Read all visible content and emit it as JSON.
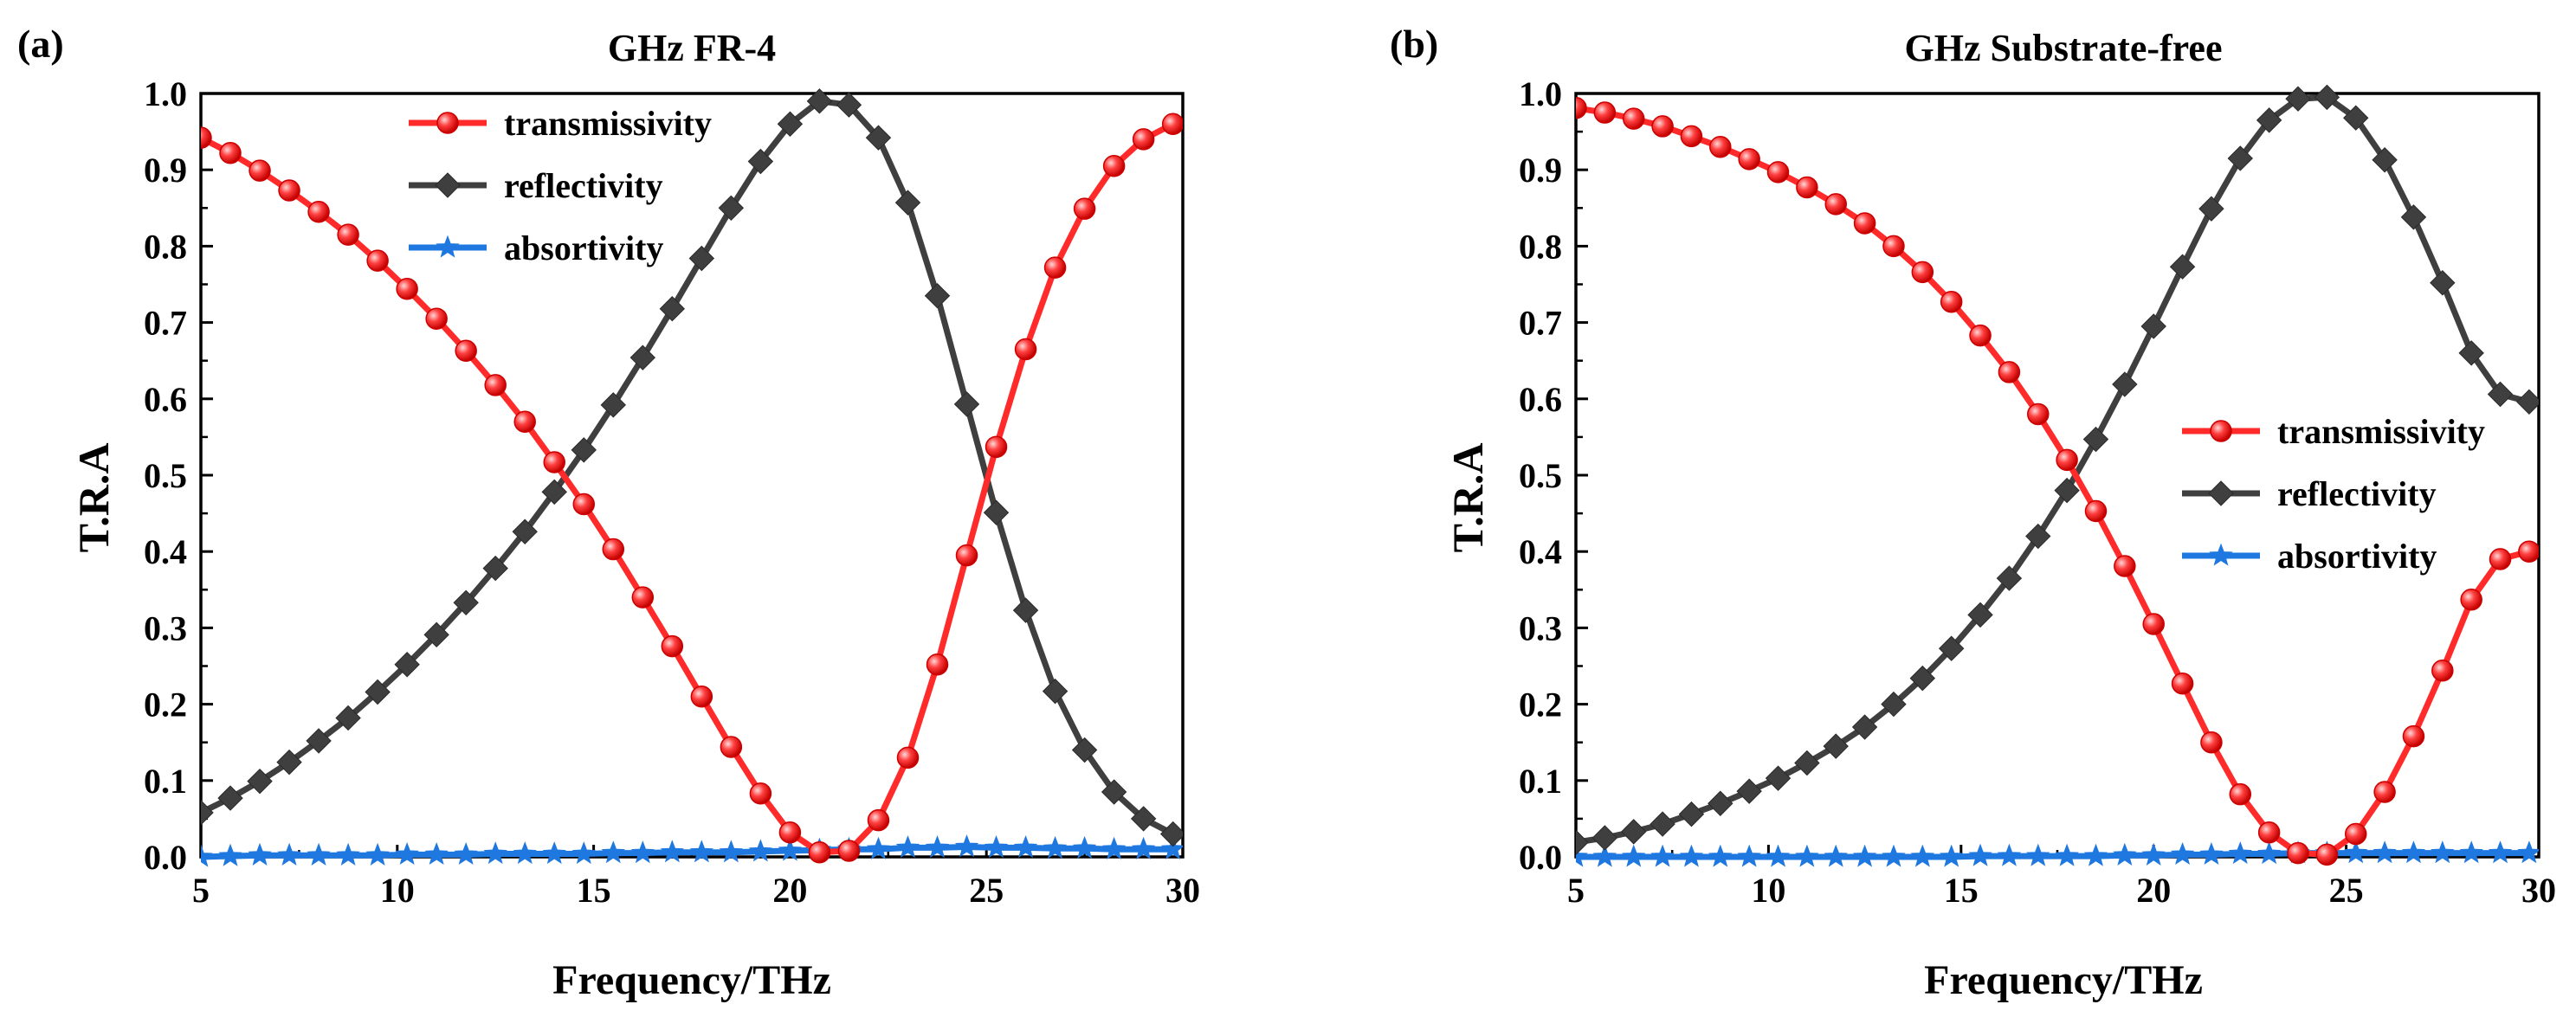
{
  "chart_data": [
    {
      "type": "line",
      "panel_label": "(a)",
      "title": "GHz FR-4",
      "xlabel": "Frequency/THz",
      "ylabel": "T.R.A",
      "xlim": [
        5,
        30
      ],
      "ylim": [
        0,
        1.0
      ],
      "xticks": [
        "5",
        "10",
        "15",
        "20",
        "25",
        "30"
      ],
      "yticks": [
        "0.0",
        "0.1",
        "0.2",
        "0.3",
        "0.4",
        "0.5",
        "0.6",
        "0.7",
        "0.8",
        "0.9",
        "1.0"
      ],
      "legend_position": "top-center",
      "x": [
        5.0,
        5.75,
        6.5,
        7.25,
        8.0,
        8.75,
        9.5,
        10.25,
        11.0,
        11.75,
        12.5,
        13.25,
        14.0,
        14.75,
        15.5,
        16.25,
        17.0,
        17.75,
        18.5,
        19.25,
        20.0,
        20.75,
        21.5,
        22.25,
        23.0,
        23.75,
        24.5,
        25.25,
        26.0,
        26.75,
        27.5,
        28.25,
        29.0,
        29.75
      ],
      "series": [
        {
          "name": "transmissivity",
          "color": "#ff2a2a",
          "marker": "circle",
          "values": [
            0.942,
            0.922,
            0.899,
            0.873,
            0.845,
            0.815,
            0.781,
            0.744,
            0.705,
            0.663,
            0.618,
            0.57,
            0.517,
            0.462,
            0.403,
            0.34,
            0.276,
            0.21,
            0.144,
            0.083,
            0.032,
            0.006,
            0.008,
            0.048,
            0.13,
            0.252,
            0.395,
            0.537,
            0.665,
            0.772,
            0.849,
            0.905,
            0.94,
            0.96
          ]
        },
        {
          "name": "reflectivity",
          "color": "#3f3f3f",
          "marker": "diamond",
          "values": [
            0.058,
            0.077,
            0.099,
            0.124,
            0.152,
            0.182,
            0.216,
            0.252,
            0.291,
            0.333,
            0.378,
            0.426,
            0.478,
            0.533,
            0.592,
            0.654,
            0.718,
            0.784,
            0.85,
            0.911,
            0.96,
            0.99,
            0.985,
            0.942,
            0.857,
            0.735,
            0.593,
            0.451,
            0.323,
            0.217,
            0.14,
            0.085,
            0.05,
            0.03
          ]
        },
        {
          "name": "absortivity",
          "color": "#1f78e0",
          "marker": "star",
          "values": [
            0.0,
            0.001,
            0.002,
            0.002,
            0.002,
            0.002,
            0.002,
            0.003,
            0.003,
            0.003,
            0.004,
            0.004,
            0.004,
            0.004,
            0.005,
            0.005,
            0.006,
            0.006,
            0.006,
            0.007,
            0.008,
            0.009,
            0.01,
            0.01,
            0.012,
            0.012,
            0.013,
            0.012,
            0.012,
            0.011,
            0.011,
            0.01,
            0.01,
            0.01
          ]
        }
      ]
    },
    {
      "type": "line",
      "panel_label": "(b)",
      "title": "GHz Substrate-free",
      "xlabel": "Frequency/THz",
      "ylabel": "T.R.A",
      "xlim": [
        5,
        30
      ],
      "ylim": [
        0,
        1.0
      ],
      "xticks": [
        "5",
        "10",
        "15",
        "20",
        "25",
        "30"
      ],
      "yticks": [
        "0.0",
        "0.1",
        "0.2",
        "0.3",
        "0.4",
        "0.5",
        "0.6",
        "0.7",
        "0.8",
        "0.9",
        "1.0"
      ],
      "legend_position": "center-right",
      "x": [
        5.0,
        5.75,
        6.5,
        7.25,
        8.0,
        8.75,
        9.5,
        10.25,
        11.0,
        11.75,
        12.5,
        13.25,
        14.0,
        14.75,
        15.5,
        16.25,
        17.0,
        17.75,
        18.5,
        19.25,
        20.0,
        20.75,
        21.5,
        22.25,
        23.0,
        23.75,
        24.5,
        25.25,
        26.0,
        26.75,
        27.5,
        28.25,
        29.0,
        29.75
      ],
      "series": [
        {
          "name": "transmissivity",
          "color": "#ff2a2a",
          "marker": "circle",
          "values": [
            0.981,
            0.975,
            0.967,
            0.957,
            0.944,
            0.93,
            0.914,
            0.897,
            0.877,
            0.855,
            0.83,
            0.8,
            0.766,
            0.727,
            0.683,
            0.635,
            0.58,
            0.52,
            0.453,
            0.381,
            0.305,
            0.227,
            0.15,
            0.082,
            0.032,
            0.005,
            0.003,
            0.03,
            0.085,
            0.158,
            0.244,
            0.337,
            0.39,
            0.4
          ]
        },
        {
          "name": "reflectivity",
          "color": "#3f3f3f",
          "marker": "diamond",
          "values": [
            0.019,
            0.025,
            0.033,
            0.043,
            0.056,
            0.07,
            0.086,
            0.103,
            0.123,
            0.145,
            0.17,
            0.2,
            0.234,
            0.273,
            0.317,
            0.365,
            0.42,
            0.48,
            0.547,
            0.619,
            0.695,
            0.773,
            0.849,
            0.915,
            0.965,
            0.993,
            0.995,
            0.968,
            0.913,
            0.838,
            0.752,
            0.66,
            0.606,
            0.596
          ]
        },
        {
          "name": "absortivity",
          "color": "#1f78e0",
          "marker": "star",
          "values": [
            0.0,
            0.0,
            0.0,
            0.0,
            0.0,
            0.0,
            0.0,
            0.0,
            0.0,
            0.0,
            0.0,
            0.0,
            0.0,
            0.0,
            0.001,
            0.001,
            0.001,
            0.001,
            0.001,
            0.002,
            0.002,
            0.003,
            0.003,
            0.004,
            0.004,
            0.005,
            0.005,
            0.005,
            0.005,
            0.005,
            0.005,
            0.005,
            0.005,
            0.005
          ]
        }
      ]
    }
  ]
}
